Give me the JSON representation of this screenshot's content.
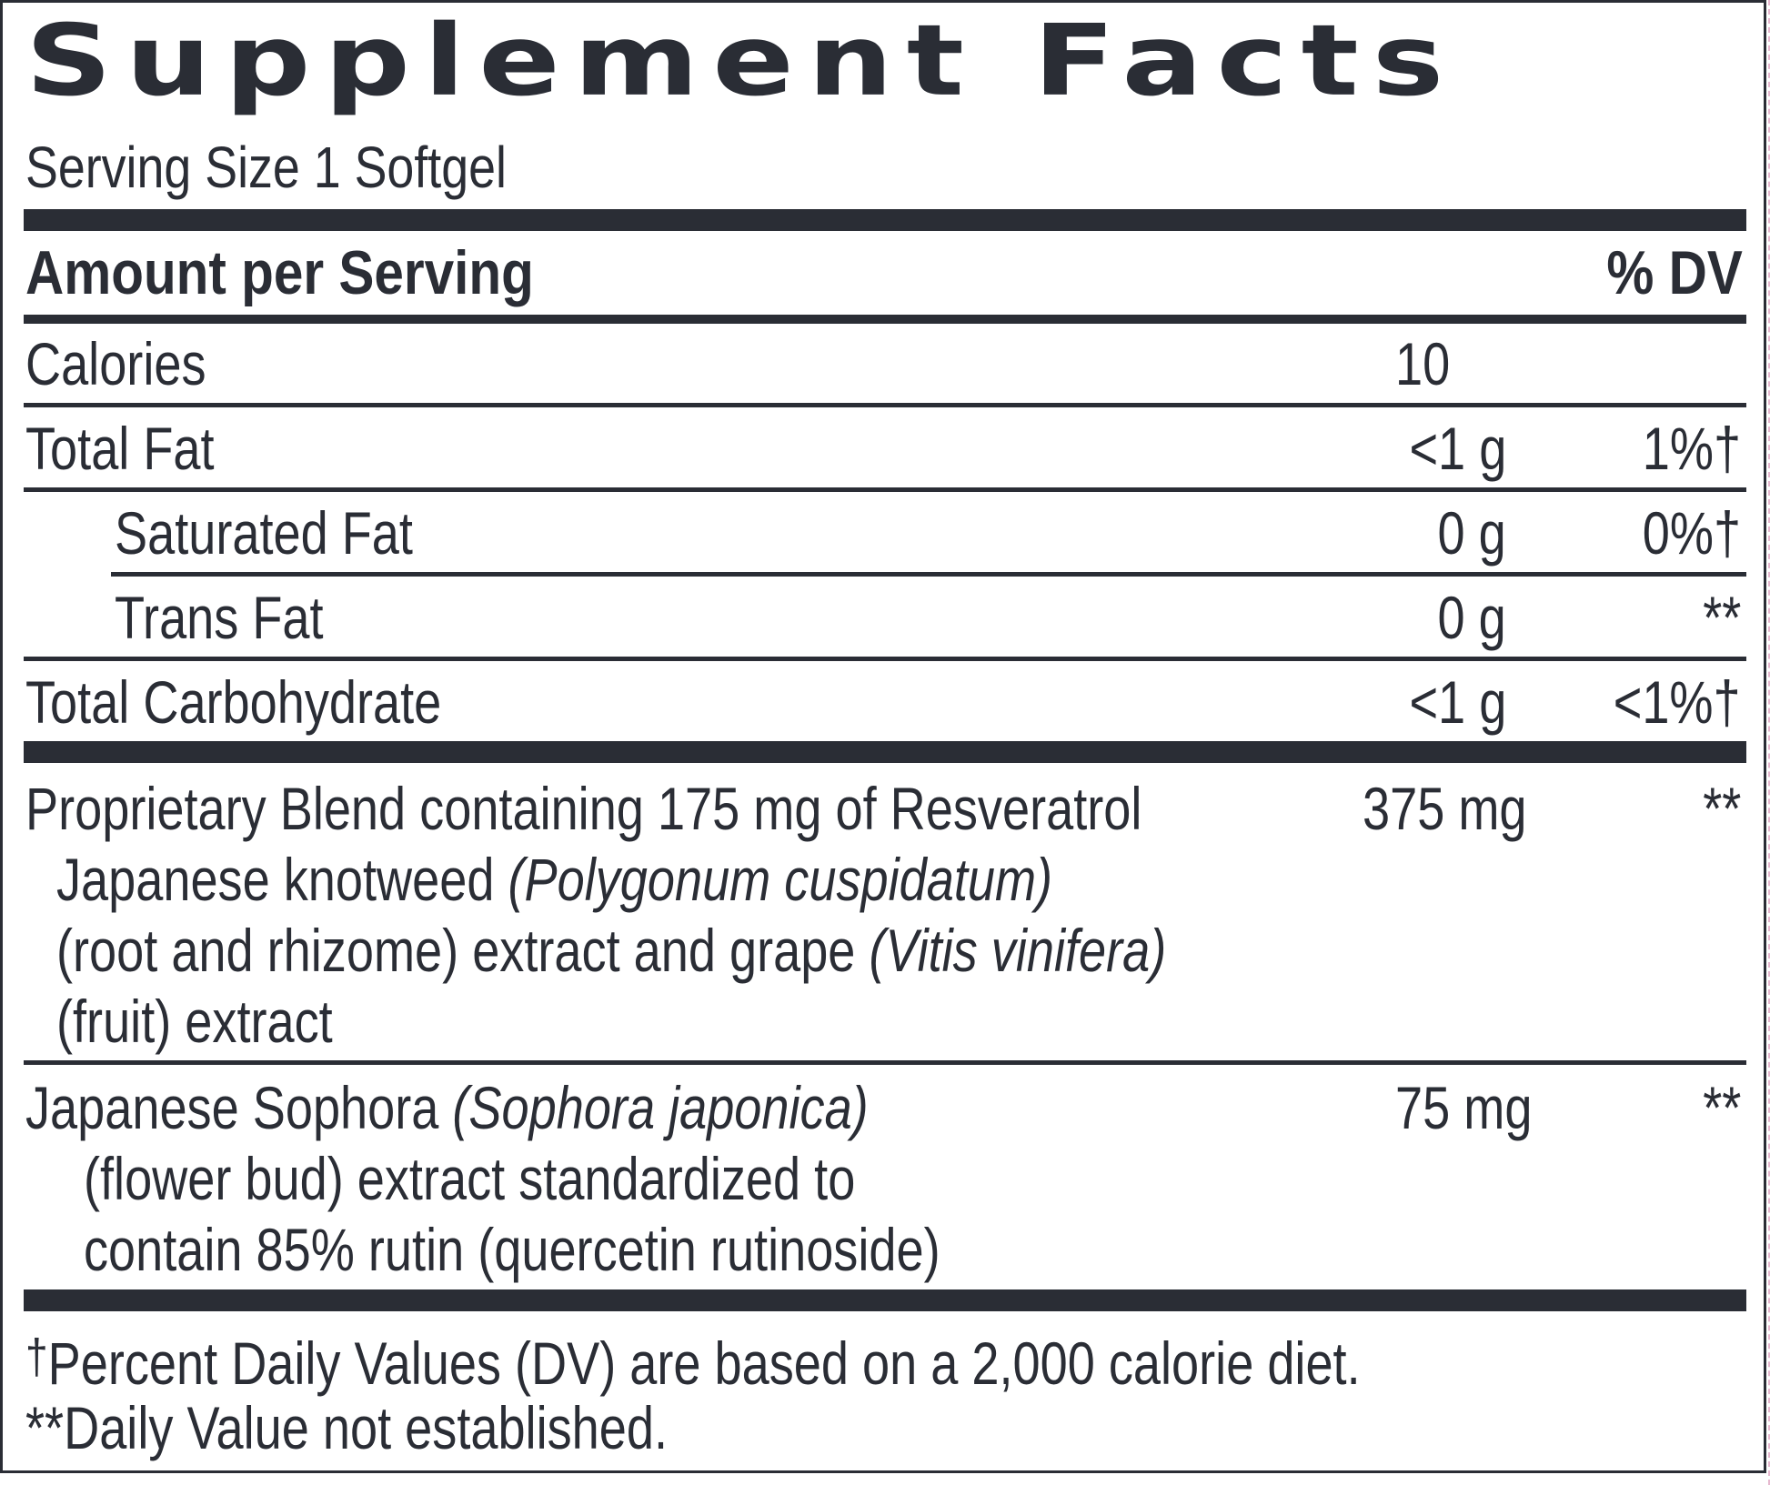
{
  "title": "Supplement Facts",
  "serving_size": "Serving Size 1 Softgel",
  "header": {
    "amount_label": "Amount per Serving",
    "dv_label": "% DV"
  },
  "rows": {
    "calories": {
      "name": "Calories",
      "amount": "10",
      "dv": ""
    },
    "total_fat": {
      "name": "Total Fat",
      "amount": "<1 g",
      "dv": "1%†"
    },
    "saturated_fat": {
      "name": "Saturated Fat",
      "amount": "0 g",
      "dv": "0%†"
    },
    "trans_fat": {
      "name": "Trans Fat",
      "amount": "0 g",
      "dv": "**"
    },
    "total_carb": {
      "name": "Total Carbohydrate",
      "amount": "<1 g",
      "dv": "<1%†"
    }
  },
  "blend": {
    "line1": "Proprietary Blend containing 175 mg of Resveratrol",
    "line2_a": "Japanese knotweed ",
    "line2_b": "(Polygonum cuspidatum)",
    "line3_a": "(root and rhizome) extract and grape ",
    "line3_b": "(Vitis vinifera)",
    "line4": "(fruit) extract",
    "amount": "375 mg",
    "dv": "**"
  },
  "sophora": {
    "line1_a": "Japanese Sophora ",
    "line1_b": "(Sophora japonica)",
    "line2": "(flower bud) extract standardized to",
    "line3": "contain 85% rutin (quercetin rutinoside)",
    "amount": "75 mg",
    "dv": "**"
  },
  "footnotes": {
    "dagger_symbol": "†",
    "dagger_text": "Percent Daily Values (DV) are based on a 2,000 calorie diet.",
    "stars_text": "**Daily Value not established."
  }
}
